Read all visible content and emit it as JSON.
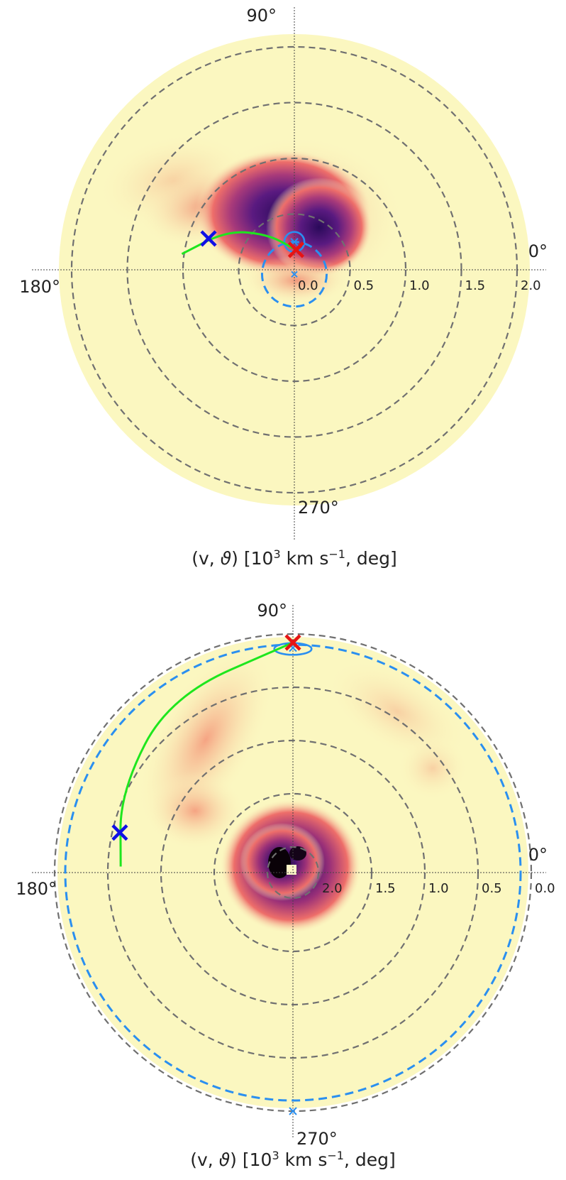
{
  "colors": {
    "background_field": "#fbf7c0",
    "dashed_circle": "#707070",
    "axis_line": "#444444",
    "trajectory": "#1ee61e",
    "start_marker": "#1010e6",
    "end_marker": "#e61414",
    "projected": "#2a8ff0"
  },
  "icons": {
    "start_marker": "x-cross-icon",
    "end_marker": "x-cross-icon"
  },
  "chart_data": [
    {
      "type": "polar-density",
      "angle_labels": [
        "90°",
        "0°",
        "180°",
        "270°"
      ],
      "radial_ticks": [
        "0.0",
        "0.5",
        "1.0",
        "1.5",
        "2.0"
      ],
      "radial_tick_values": [
        0.0,
        0.5,
        1.0,
        1.5,
        2.0
      ],
      "radial_axis": "increasing outward",
      "rlim": [
        0,
        2.2
      ],
      "xlabel_parts": [
        "(v, ",
        "ϑ",
        ") [10",
        "3",
        " km s",
        "−1",
        ", deg]"
      ],
      "grid": "dashed",
      "trajectory": [
        {
          "r": 0.18,
          "theta": 85
        },
        {
          "r": 0.4,
          "theta": 127
        },
        {
          "r": 0.7,
          "theta": 150
        },
        {
          "r": 1.02,
          "theta": 172
        }
      ],
      "start_marker": {
        "r": 0.82,
        "theta": 160
      },
      "end_marker": {
        "r": 0.18,
        "theta": 85
      },
      "projected_marker": {
        "r": 0.25,
        "theta": 90
      },
      "projected_ellipse": {
        "r": 0.25,
        "theta": 90,
        "width": 0.18,
        "height": 0.18
      },
      "projected_dashed_circle": {
        "center_r": 0.04,
        "center_theta": 270,
        "radius": 0.29
      },
      "density_peak": {
        "r": 0.3,
        "theta": 100
      }
    },
    {
      "type": "polar-density",
      "angle_labels": [
        "90°",
        "0°",
        "180°",
        "270°"
      ],
      "radial_ticks": [
        "2.0",
        "1.5",
        "1.0",
        "0.5",
        "0.0"
      ],
      "radial_tick_values": [
        2.0,
        1.5,
        1.0,
        0.5,
        0.0
      ],
      "radial_axis": "decreasing outward",
      "rlim": [
        2.24,
        0.0
      ],
      "xlabel_parts": [
        "(v, ",
        "ϑ",
        ") [10",
        "3",
        " km s",
        "−1",
        ", deg]"
      ],
      "grid": "dashed",
      "trajectory": [
        {
          "r": 0.08,
          "theta": 90
        },
        {
          "r": 0.22,
          "theta": 125
        },
        {
          "r": 0.45,
          "theta": 155
        },
        {
          "r": 0.62,
          "theta": 178
        }
      ],
      "start_marker": {
        "r": 0.57,
        "theta": 167
      },
      "end_marker": {
        "r": 0.08,
        "theta": 90
      },
      "projected_marker": {
        "r": 0.13,
        "theta": 90
      },
      "projected_marker_outer": {
        "r": 0.0,
        "theta": 270
      },
      "projected_ellipse": {
        "r": 0.14,
        "theta": 90,
        "width": 0.35,
        "height": 0.11
      },
      "projected_dashed_circle": {
        "center_r": 2.2,
        "center_theta": 0,
        "radius_value": 0.1
      },
      "density_peak": {
        "r": 2.2,
        "theta": 0
      }
    }
  ]
}
